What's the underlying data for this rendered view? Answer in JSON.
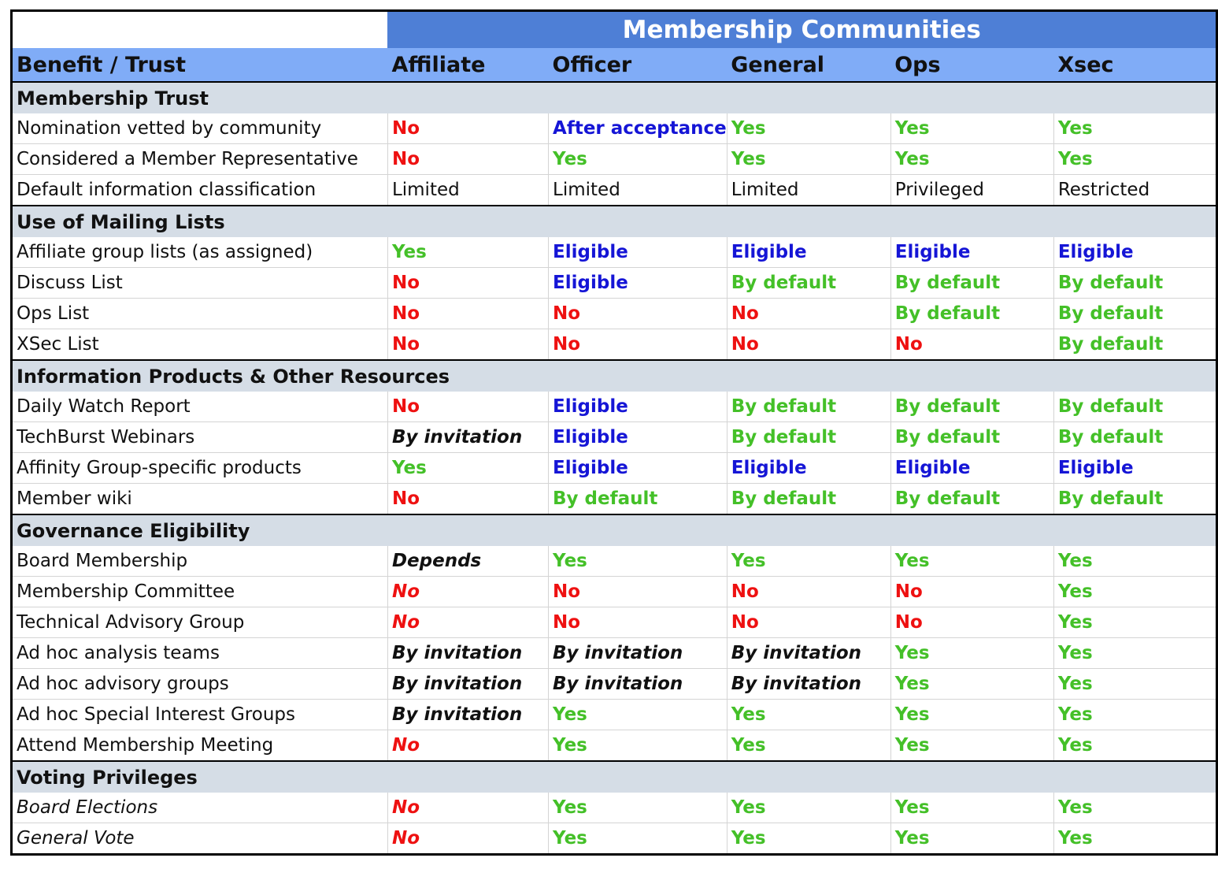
{
  "title": "Membership Communities",
  "header": [
    "Benefit / Trust",
    "Affiliate",
    "Officer",
    "General",
    "Ops",
    "Xsec"
  ],
  "colors": {
    "no": "#ee1111",
    "yes": "#44c028",
    "eligible": "#1515d6",
    "title_bg": "#4e7fd6",
    "header_bg": "#80acf7",
    "section_bg": "#d5dde6"
  },
  "sections": [
    {
      "title": "Membership Trust",
      "rows": [
        {
          "label": "Nomination vetted by community",
          "values": [
            "No",
            "After acceptance",
            "Yes",
            "Yes",
            "Yes"
          ]
        },
        {
          "label": "Considered a Member Representative",
          "values": [
            "No",
            "Yes",
            "Yes",
            "Yes",
            "Yes"
          ]
        },
        {
          "label": "Default information classification",
          "values": [
            "Limited",
            "Limited",
            "Limited",
            "Privileged",
            "Restricted"
          ]
        }
      ]
    },
    {
      "title": "Use of Mailing Lists",
      "rows": [
        {
          "label": "Affiliate group lists (as assigned)",
          "values": [
            "Yes",
            "Eligible",
            "Eligible",
            "Eligible",
            "Eligible"
          ]
        },
        {
          "label": "Discuss List",
          "values": [
            "No",
            "Eligible",
            "By default",
            "By default",
            "By default"
          ]
        },
        {
          "label": "Ops List",
          "values": [
            "No",
            "No",
            "No",
            "By default",
            "By default"
          ]
        },
        {
          "label": "XSec List",
          "values": [
            "No",
            "No",
            "No",
            "No",
            "By default"
          ]
        }
      ]
    },
    {
      "title": "Information Products & Other Resources",
      "rows": [
        {
          "label": "Daily Watch Report",
          "values": [
            "No",
            "Eligible",
            "By default",
            "By default",
            "By default"
          ]
        },
        {
          "label": "TechBurst Webinars",
          "values": [
            "By invitation",
            "Eligible",
            "By default",
            "By default",
            "By default"
          ]
        },
        {
          "label": "Affinity Group-specific products",
          "values": [
            "Yes",
            "Eligible",
            "Eligible",
            "Eligible",
            "Eligible"
          ]
        },
        {
          "label": "Member wiki",
          "values": [
            "No",
            "By default",
            "By default",
            "By default",
            "By default"
          ]
        }
      ]
    },
    {
      "title": "Governance Eligibility",
      "rows": [
        {
          "label": "Board Membership",
          "values": [
            "Depends",
            "Yes",
            "Yes",
            "Yes",
            "Yes"
          ]
        },
        {
          "label": "Membership Committee",
          "values": [
            "No",
            "No",
            "No",
            "No",
            "Yes"
          ]
        },
        {
          "label": "Technical Advisory Group",
          "values": [
            "No",
            "No",
            "No",
            "No",
            "Yes"
          ]
        },
        {
          "label": "Ad hoc analysis teams",
          "values": [
            "By invitation",
            "By invitation",
            "By invitation",
            "Yes",
            "Yes"
          ]
        },
        {
          "label": "Ad hoc advisory groups",
          "values": [
            "By invitation",
            "By invitation",
            "By invitation",
            "Yes",
            "Yes"
          ]
        },
        {
          "label": "Ad hoc Special Interest Groups",
          "values": [
            "By invitation",
            "Yes",
            "Yes",
            "Yes",
            "Yes"
          ]
        },
        {
          "label": "Attend Membership Meeting",
          "values": [
            "No",
            "Yes",
            "Yes",
            "Yes",
            "Yes"
          ]
        }
      ]
    },
    {
      "title": "Voting Privileges",
      "rows": [
        {
          "label": "Board Elections",
          "values": [
            "No",
            "Yes",
            "Yes",
            "Yes",
            "Yes"
          ]
        },
        {
          "label": "General Vote",
          "values": [
            "No",
            "Yes",
            "Yes",
            "Yes",
            "Yes"
          ]
        }
      ]
    }
  ]
}
